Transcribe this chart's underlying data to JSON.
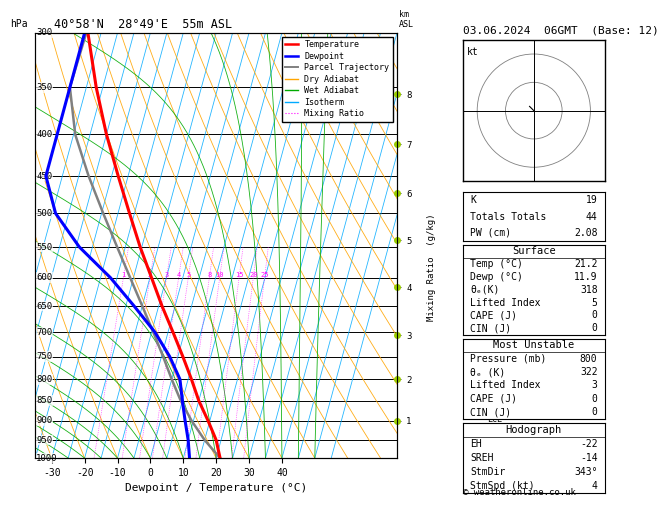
{
  "title_left": "40°58'N  28°49'E  55m ASL",
  "title_right": "03.06.2024  06GMT  (Base: 12)",
  "xlabel": "Dewpoint / Temperature (°C)",
  "ylabel_left": "hPa",
  "bg_color": "#ffffff",
  "plot_bg": "#ffffff",
  "pressure_levels": [
    1000,
    950,
    900,
    850,
    800,
    750,
    700,
    650,
    600,
    550,
    500,
    450,
    400,
    350,
    300
  ],
  "temp_profile": [
    21.2,
    18.5,
    14.5,
    10.0,
    6.0,
    1.5,
    -3.5,
    -9.0,
    -14.5,
    -20.5,
    -26.5,
    -33.0,
    -40.0,
    -47.0,
    -54.0
  ],
  "dewp_profile": [
    11.9,
    10.0,
    7.5,
    5.0,
    2.5,
    -2.5,
    -9.0,
    -17.5,
    -27.0,
    -39.0,
    -49.0,
    -55.0,
    -55.0,
    -55.0,
    -55.0
  ],
  "parcel_profile": [
    21.2,
    15.0,
    9.5,
    4.5,
    0.0,
    -4.5,
    -9.5,
    -15.0,
    -21.0,
    -27.5,
    -34.5,
    -42.0,
    -49.5,
    -55.0,
    -54.5
  ],
  "temp_color": "#ff0000",
  "dewp_color": "#0000ff",
  "parcel_color": "#808080",
  "dry_adiabat_color": "#ffa500",
  "wet_adiabat_color": "#00aa00",
  "isotherm_color": "#00aaff",
  "mixing_ratio_color": "#ff00ff",
  "temp_lw": 2.2,
  "dewp_lw": 2.2,
  "parcel_lw": 1.8,
  "t_min": -35,
  "t_max": 40,
  "p_min": 300,
  "p_max": 1000,
  "mixing_ratios": [
    1,
    2,
    3,
    4,
    5,
    8,
    10,
    15,
    20,
    25
  ],
  "km_levels": [
    1,
    2,
    3,
    4,
    5,
    6,
    7,
    8
  ],
  "km_pressures": [
    900,
    800,
    706,
    616,
    540,
    472,
    411,
    357
  ],
  "lcl_pressure": 897,
  "hodograph_u": [
    0,
    -0.5,
    -1.0,
    -1.5
  ],
  "hodograph_v": [
    0,
    0.5,
    1.0,
    1.5
  ],
  "indices_K": 19,
  "indices_TT": 44,
  "indices_PW": "2.08",
  "sfc_temp": "21.2",
  "sfc_dewp": "11.9",
  "sfc_theta_e": "318",
  "sfc_li": "5",
  "sfc_cape": "0",
  "sfc_cin": "0",
  "mu_pres": "800",
  "mu_theta_e": "322",
  "mu_li": "3",
  "mu_cape": "0",
  "mu_cin": "0",
  "hodo_EH": "-22",
  "hodo_SREH": "-14",
  "hodo_StmDir": "343°",
  "hodo_StmSpd": "4",
  "copyright": "© weatheronline.co.uk"
}
